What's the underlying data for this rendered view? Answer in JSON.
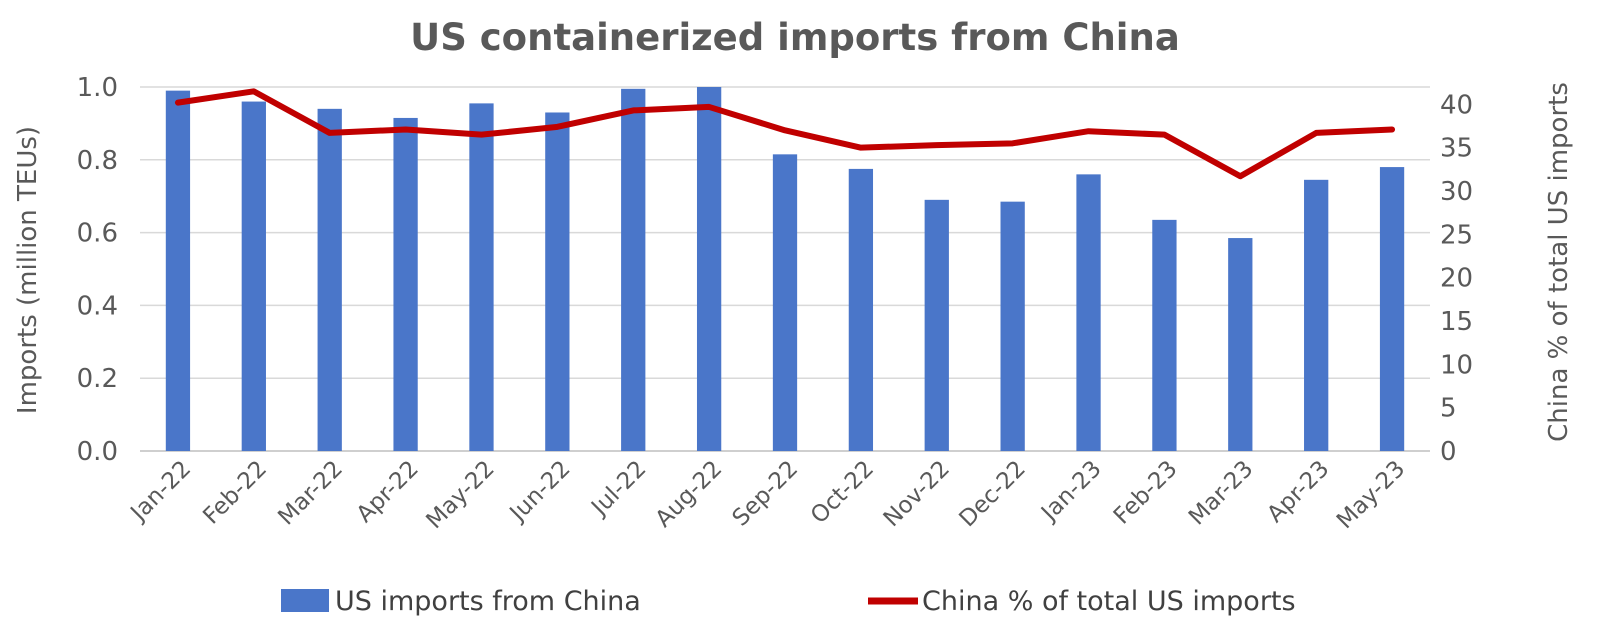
{
  "chart_data": {
    "type": "bar+line",
    "title": "US containerized imports from China",
    "ylabel": "Imports (million TEUs)",
    "y2label": "China % of total US imports",
    "ylim": [
      0,
      1.0
    ],
    "y2lim": [
      0,
      42
    ],
    "yticks": [
      "0.0",
      "0.2",
      "0.4",
      "0.6",
      "0.8",
      "1.0"
    ],
    "y2ticks": [
      "0",
      "5",
      "10",
      "15",
      "20",
      "25",
      "30",
      "35",
      "40"
    ],
    "grid": true,
    "legend_position": "bottom",
    "categories": [
      "Jan-22",
      "Feb-22",
      "Mar-22",
      "Apr-22",
      "May-22",
      "Jun-22",
      "Jul-22",
      "Aug-22",
      "Sep-22",
      "Oct-22",
      "Nov-22",
      "Dec-22",
      "Jan-23",
      "Feb-23",
      "Mar-23",
      "Apr-23",
      "May-23"
    ],
    "series": [
      {
        "name": "US imports from China",
        "type": "bar",
        "axis": "left",
        "color": "#4a76c9",
        "values": [
          0.99,
          0.96,
          0.94,
          0.915,
          0.955,
          0.93,
          0.995,
          1.0,
          0.815,
          0.775,
          0.69,
          0.685,
          0.76,
          0.635,
          0.585,
          0.745,
          0.78
        ]
      },
      {
        "name": "China % of total US imports",
        "type": "line",
        "axis": "right",
        "color": "#c00000",
        "values": [
          40.2,
          41.5,
          36.7,
          37.1,
          36.5,
          37.4,
          39.3,
          39.7,
          37.0,
          35.0,
          35.3,
          35.5,
          36.9,
          36.5,
          31.7,
          36.7,
          37.1
        ]
      }
    ]
  }
}
